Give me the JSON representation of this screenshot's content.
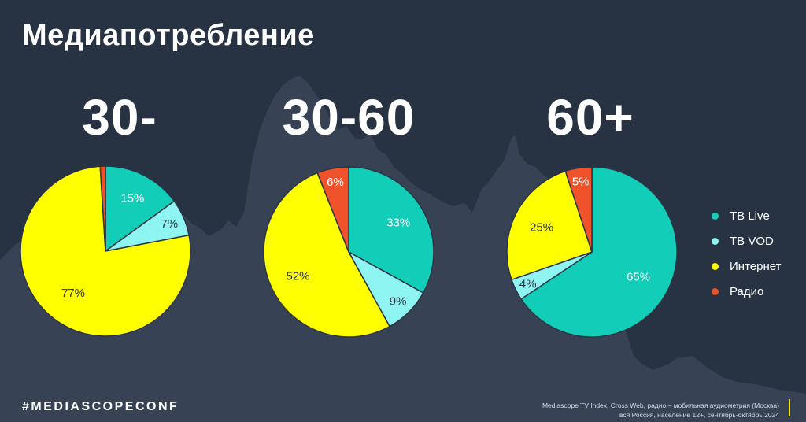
{
  "title": "Медиапотребление",
  "hashtag": "#MEDIASCOPECONF",
  "source": {
    "line1": "Mediascope TV Index, Cross Web, радио – мобильная аудиометрия (Москва)",
    "line2": "вся Россия, население 12+, сентябрь-октябрь 2024"
  },
  "legend": [
    {
      "label": "ТВ Live",
      "color": "#12cdb8"
    },
    {
      "label": "ТВ VOD",
      "color": "#8ff5f2"
    },
    {
      "label": "Интернет",
      "color": "#ffff00"
    },
    {
      "label": "Радио",
      "color": "#f0522a"
    }
  ],
  "chart_data": [
    {
      "type": "pie",
      "title": "30-",
      "categories": [
        "ТВ Live",
        "ТВ VOD",
        "Интернет",
        "Радио"
      ],
      "values": [
        15,
        7,
        77,
        1
      ],
      "labels": [
        "15%",
        "7%",
        "77%",
        ""
      ]
    },
    {
      "type": "pie",
      "title": "30-60",
      "categories": [
        "ТВ Live",
        "ТВ VOD",
        "Интернет",
        "Радио"
      ],
      "values": [
        33,
        9,
        52,
        6
      ],
      "labels": [
        "33%",
        "9%",
        "52%",
        "6%"
      ]
    },
    {
      "type": "pie",
      "title": "60+",
      "categories": [
        "ТВ Live",
        "ТВ VOD",
        "Интернет",
        "Радио"
      ],
      "values": [
        65,
        4,
        25,
        5
      ],
      "labels": [
        "65%",
        "4%",
        "25%",
        "5%"
      ]
    }
  ]
}
